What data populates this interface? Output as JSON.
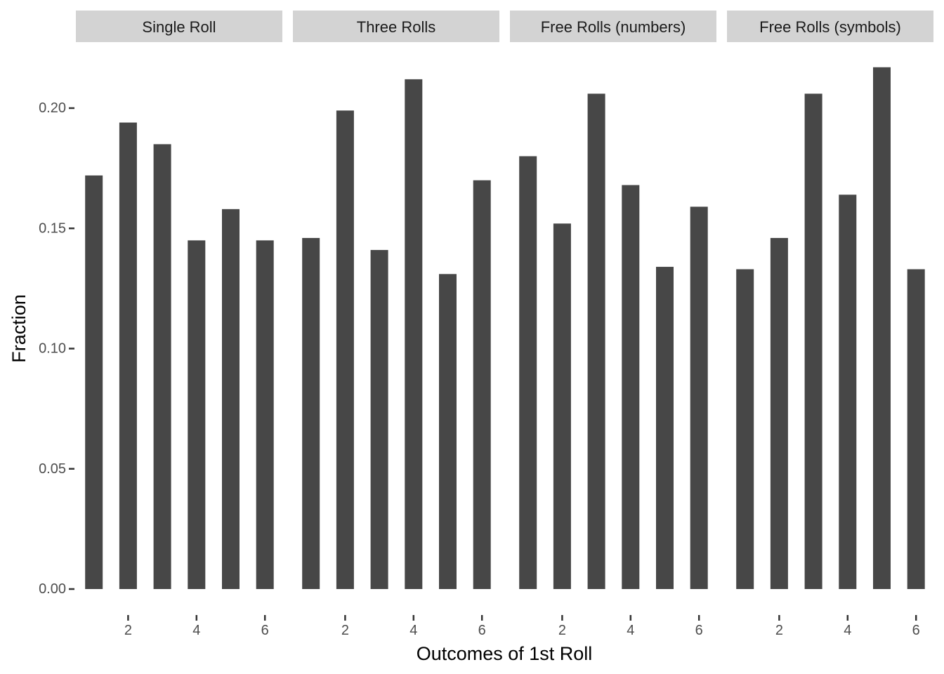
{
  "chart_data": {
    "type": "bar",
    "xlabel": "Outcomes of 1st Roll",
    "ylabel": "Fraction",
    "ylim": [
      0,
      0.22
    ],
    "y_ticks": [
      "0.00",
      "0.05",
      "0.10",
      "0.15",
      "0.20"
    ],
    "y_tick_values": [
      0,
      0.05,
      0.1,
      0.15,
      0.2
    ],
    "x_ticks": [
      "2",
      "4",
      "6"
    ],
    "x_tick_values": [
      2,
      4,
      6
    ],
    "categories": [
      1,
      2,
      3,
      4,
      5,
      6
    ],
    "grid": false,
    "bar_color": "#474747",
    "strip_color": "#d3d3d3",
    "panels": [
      {
        "title": "Single Roll",
        "values": [
          0.172,
          0.194,
          0.185,
          0.145,
          0.158,
          0.145
        ]
      },
      {
        "title": "Three Rolls",
        "values": [
          0.146,
          0.199,
          0.141,
          0.212,
          0.131,
          0.17
        ]
      },
      {
        "title": "Free Rolls (numbers)",
        "values": [
          0.18,
          0.152,
          0.206,
          0.168,
          0.134,
          0.159
        ]
      },
      {
        "title": "Free Rolls (symbols)",
        "values": [
          0.133,
          0.146,
          0.206,
          0.164,
          0.217,
          0.133
        ]
      }
    ]
  }
}
